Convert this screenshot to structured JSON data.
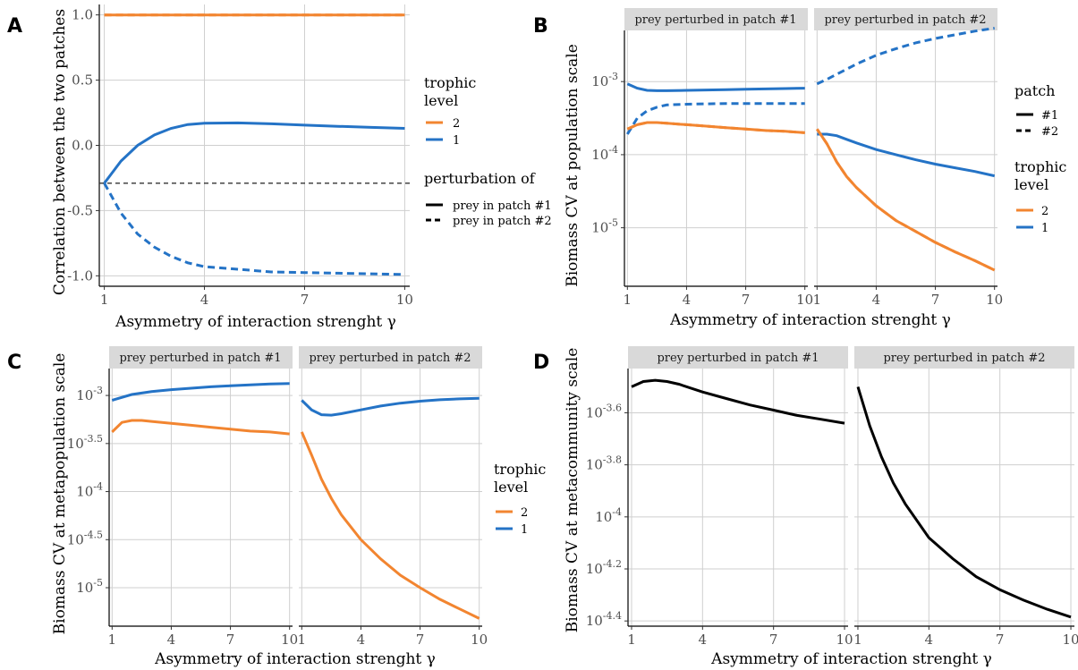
{
  "colors": {
    "level2": "#F28530",
    "level1": "#2473C6",
    "black": "#000000",
    "ref": "#333333"
  },
  "panels": {
    "A": {
      "letter": "A",
      "ylabel": "Correlation between the two patches",
      "xlabel": "Asymmetry of interaction strenght γ",
      "yticks": [
        "1.0",
        "0.5",
        "0.0",
        "-0.5",
        "-1.0"
      ],
      "xticks": [
        "1",
        "4",
        "7",
        "10"
      ],
      "legend": {
        "title1": "trophic",
        "title2": "level",
        "items": [
          "2",
          "1"
        ],
        "pert_title": "perturbation of",
        "pert_items": [
          "prey in patch #1",
          "prey in patch #2"
        ]
      }
    },
    "B": {
      "letter": "B",
      "ylabel": "Biomass CV at population scale",
      "xlabel": "Asymmetry of interaction strenght γ",
      "strips": [
        "prey perturbed in patch #1",
        "prey perturbed in patch #2"
      ],
      "xticks": [
        "1",
        "4",
        "7",
        "10"
      ],
      "legend": {
        "patch_title": "patch",
        "patch_items": [
          "#1",
          "#2"
        ],
        "title1": "trophic",
        "title2": "level",
        "items": [
          "2",
          "1"
        ]
      }
    },
    "C": {
      "letter": "C",
      "ylabel": "Biomass CV at metapopulation scale",
      "xlabel": "Asymmetry of interaction strenght γ",
      "strips": [
        "prey perturbed in patch #1",
        "prey perturbed in patch #2"
      ],
      "xticks": [
        "1",
        "4",
        "7",
        "10"
      ],
      "legend": {
        "title1": "trophic",
        "title2": "level",
        "items": [
          "2",
          "1"
        ]
      }
    },
    "D": {
      "letter": "D",
      "ylabel": "Biomass CV at metacommunity scale",
      "xlabel": "Asymmetry of interaction strenght γ",
      "strips": [
        "prey perturbed in patch #1",
        "prey perturbed in patch #2"
      ],
      "xticks": [
        "1",
        "4",
        "7",
        "10"
      ]
    }
  },
  "chart_data": [
    {
      "panel": "A",
      "type": "line",
      "xlabel": "Asymmetry of interaction strenght γ",
      "ylabel": "Correlation between the two patches",
      "xlim": [
        1,
        10
      ],
      "ylim": [
        -1.08,
        1.08
      ],
      "yticks": [
        1.0,
        0.5,
        0.0,
        -0.5,
        -1.0
      ],
      "reference_line": {
        "y": -0.29,
        "style": "dashed"
      },
      "series": [
        {
          "name": "2",
          "perturbation": "prey in patch #1",
          "x": [
            1,
            2.5,
            4,
            5.5,
            7,
            8.5,
            10
          ],
          "y": [
            1.0,
            1.0,
            1.0,
            1.0,
            1.0,
            1.0,
            1.0
          ]
        },
        {
          "name": "2",
          "perturbation": "prey in patch #2",
          "x": [
            1,
            2.5,
            4,
            5.5,
            7,
            8.5,
            10
          ],
          "y": [
            1.0,
            1.0,
            1.0,
            1.0,
            1.0,
            1.0,
            1.0
          ]
        },
        {
          "name": "1",
          "perturbation": "prey in patch #1",
          "x": [
            1,
            1.5,
            2,
            2.5,
            3,
            3.5,
            4,
            5,
            6,
            7,
            8,
            9,
            10
          ],
          "y": [
            -0.29,
            -0.12,
            0.0,
            0.08,
            0.13,
            0.16,
            0.17,
            0.172,
            0.165,
            0.155,
            0.146,
            0.138,
            0.13
          ]
        },
        {
          "name": "1",
          "perturbation": "prey in patch #2",
          "x": [
            1,
            1.5,
            2,
            2.5,
            3,
            3.5,
            4,
            5,
            6,
            7,
            8,
            9,
            10
          ],
          "y": [
            -0.29,
            -0.52,
            -0.68,
            -0.78,
            -0.85,
            -0.9,
            -0.93,
            -0.95,
            -0.97,
            -0.975,
            -0.98,
            -0.985,
            -0.99
          ]
        }
      ]
    },
    {
      "panel": "B",
      "type": "line",
      "xlabel": "Asymmetry of interaction strenght γ",
      "ylabel": "Biomass CV at population scale",
      "y_scale": "log10",
      "yticks": [
        "10^-3",
        "10^-4",
        "10^-5"
      ],
      "ylim_log10": [
        -5.8,
        -2.3
      ],
      "facets": [
        {
          "strip": "prey perturbed in patch #1",
          "series": [
            {
              "name": "1",
              "patch": "#1",
              "x": [
                1,
                1.5,
                2,
                2.5,
                3,
                4,
                5,
                6,
                7,
                8,
                9,
                10
              ],
              "y_log10": [
                -3.03,
                -3.09,
                -3.12,
                -3.125,
                -3.125,
                -3.12,
                -3.115,
                -3.11,
                -3.105,
                -3.1,
                -3.095,
                -3.09
              ]
            },
            {
              "name": "1",
              "patch": "#2",
              "x": [
                1,
                1.5,
                2,
                2.5,
                3,
                4,
                5,
                6,
                7,
                8,
                9,
                10
              ],
              "y_log10": [
                -3.72,
                -3.5,
                -3.4,
                -3.35,
                -3.32,
                -3.31,
                -3.305,
                -3.3,
                -3.3,
                -3.3,
                -3.3,
                -3.3
              ]
            },
            {
              "name": "2",
              "patch": "#1",
              "x": [
                1,
                1.5,
                2,
                2.5,
                3,
                4,
                5,
                6,
                7,
                8,
                9,
                10
              ],
              "y_log10": [
                -3.65,
                -3.59,
                -3.56,
                -3.56,
                -3.57,
                -3.59,
                -3.61,
                -3.63,
                -3.65,
                -3.67,
                -3.68,
                -3.7
              ]
            },
            {
              "name": "2",
              "patch": "#2",
              "x": [
                1,
                1.5,
                2,
                2.5,
                3,
                4,
                5,
                6,
                7,
                8,
                9,
                10
              ],
              "y_log10": [
                -3.65,
                -3.59,
                -3.56,
                -3.56,
                -3.57,
                -3.59,
                -3.61,
                -3.63,
                -3.65,
                -3.67,
                -3.68,
                -3.7
              ]
            }
          ]
        },
        {
          "strip": "prey perturbed in patch #2",
          "series": [
            {
              "name": "1",
              "patch": "#1",
              "x": [
                1,
                1.5,
                2,
                2.5,
                3,
                4,
                5,
                6,
                7,
                8,
                9,
                10
              ],
              "y_log10": [
                -3.72,
                -3.72,
                -3.74,
                -3.79,
                -3.84,
                -3.93,
                -4.0,
                -4.07,
                -4.13,
                -4.18,
                -4.23,
                -4.29
              ]
            },
            {
              "name": "1",
              "patch": "#2",
              "x": [
                1,
                1.5,
                2,
                2.5,
                3,
                4,
                5,
                6,
                7,
                8,
                9,
                10
              ],
              "y_log10": [
                -3.03,
                -2.97,
                -2.9,
                -2.83,
                -2.76,
                -2.64,
                -2.55,
                -2.47,
                -2.41,
                -2.36,
                -2.31,
                -2.27
              ]
            },
            {
              "name": "2",
              "patch": "#1",
              "x": [
                1,
                1.5,
                2,
                2.5,
                3,
                4,
                5,
                6,
                7,
                8,
                9,
                10
              ],
              "y_log10": [
                -3.65,
                -3.85,
                -4.1,
                -4.3,
                -4.45,
                -4.7,
                -4.9,
                -5.05,
                -5.2,
                -5.33,
                -5.45,
                -5.58
              ]
            },
            {
              "name": "2",
              "patch": "#2",
              "x": [
                1,
                1.5,
                2,
                2.5,
                3,
                4,
                5,
                6,
                7,
                8,
                9,
                10
              ],
              "y_log10": [
                -3.65,
                -3.85,
                -4.1,
                -4.3,
                -4.45,
                -4.7,
                -4.9,
                -5.05,
                -5.2,
                -5.33,
                -5.45,
                -5.58
              ]
            }
          ]
        }
      ]
    },
    {
      "panel": "C",
      "type": "line",
      "xlabel": "Asymmetry of interaction strenght γ",
      "ylabel": "Biomass CV at metapopulation scale",
      "y_scale": "log10",
      "yticks": [
        "10^-3",
        "10^-3.5",
        "10^-4",
        "10^-4.5",
        "10^-5"
      ],
      "ylim_log10": [
        -5.4,
        -2.72
      ],
      "facets": [
        {
          "strip": "prey perturbed in patch #1",
          "series": [
            {
              "name": "1",
              "x": [
                1,
                2,
                3,
                4,
                5,
                6,
                7,
                8,
                9,
                10
              ],
              "y_log10": [
                -3.05,
                -2.99,
                -2.96,
                -2.94,
                -2.925,
                -2.91,
                -2.9,
                -2.89,
                -2.88,
                -2.875
              ]
            },
            {
              "name": "2",
              "x": [
                1,
                1.5,
                2,
                2.5,
                3,
                4,
                5,
                6,
                7,
                8,
                9,
                10
              ],
              "y_log10": [
                -3.38,
                -3.28,
                -3.26,
                -3.26,
                -3.27,
                -3.29,
                -3.31,
                -3.33,
                -3.35,
                -3.37,
                -3.38,
                -3.4
              ]
            }
          ]
        },
        {
          "strip": "prey perturbed in patch #2",
          "series": [
            {
              "name": "1",
              "x": [
                1,
                1.5,
                2,
                2.5,
                3,
                4,
                5,
                6,
                7,
                8,
                9,
                10
              ],
              "y_log10": [
                -3.05,
                -3.15,
                -3.2,
                -3.205,
                -3.19,
                -3.15,
                -3.11,
                -3.08,
                -3.06,
                -3.045,
                -3.035,
                -3.03
              ]
            },
            {
              "name": "2",
              "x": [
                1,
                1.5,
                2,
                2.5,
                3,
                4,
                5,
                6,
                7,
                8,
                9,
                10
              ],
              "y_log10": [
                -3.38,
                -3.62,
                -3.87,
                -4.07,
                -4.24,
                -4.5,
                -4.7,
                -4.87,
                -5.0,
                -5.12,
                -5.22,
                -5.32
              ]
            }
          ]
        }
      ]
    },
    {
      "panel": "D",
      "type": "line",
      "xlabel": "Asymmetry of interaction strenght γ",
      "ylabel": "Biomass CV at metacommunity scale",
      "y_scale": "log10",
      "yticks": [
        "10^-3.6",
        "10^-3.8",
        "10^-4",
        "10^-4.2",
        "10^-4.4"
      ],
      "ylim_log10": [
        -4.42,
        -3.43
      ],
      "facets": [
        {
          "strip": "prey perturbed in patch #1",
          "series": [
            {
              "x": [
                1,
                1.5,
                2,
                2.5,
                3,
                4,
                5,
                6,
                7,
                8,
                9,
                10
              ],
              "y_log10": [
                -3.5,
                -3.48,
                -3.475,
                -3.48,
                -3.49,
                -3.52,
                -3.545,
                -3.57,
                -3.59,
                -3.61,
                -3.625,
                -3.64
              ]
            }
          ]
        },
        {
          "strip": "prey perturbed in patch #2",
          "series": [
            {
              "x": [
                1,
                1.5,
                2,
                2.5,
                3,
                4,
                5,
                6,
                7,
                8,
                9,
                10
              ],
              "y_log10": [
                -3.5,
                -3.65,
                -3.77,
                -3.87,
                -3.95,
                -4.08,
                -4.16,
                -4.23,
                -4.28,
                -4.32,
                -4.355,
                -4.385
              ]
            }
          ]
        }
      ]
    }
  ]
}
